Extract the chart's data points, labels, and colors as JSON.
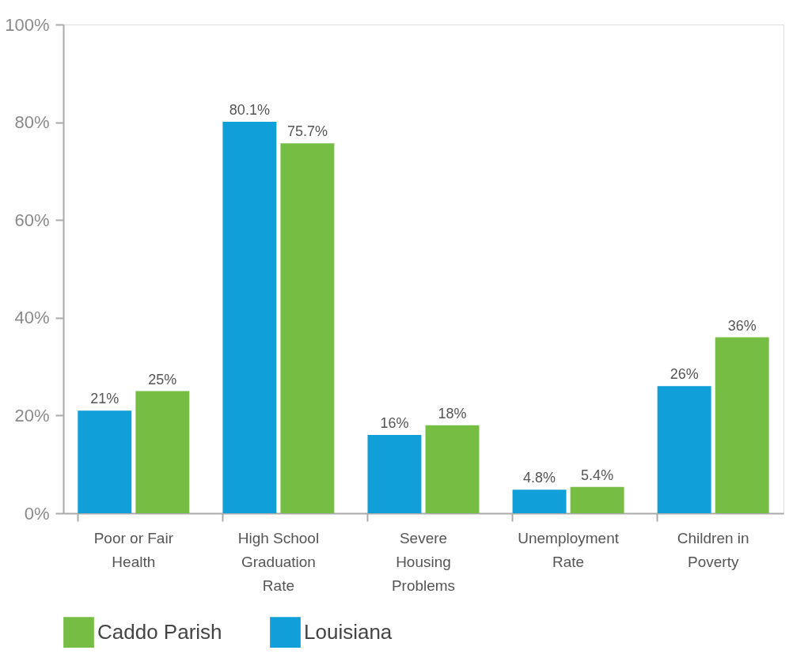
{
  "chart_data": {
    "type": "bar",
    "categories": [
      "Poor or Fair Health",
      "High School Graduation Rate",
      "Severe Housing Problems",
      "Unemployment Rate",
      "Children in Poverty"
    ],
    "series": [
      {
        "name": "Louisiana",
        "color": "#109fd9",
        "values": [
          21,
          80.1,
          16,
          4.8,
          26
        ],
        "value_labels": [
          "21%",
          "80.1%",
          "16%",
          "4.8%",
          "26%"
        ]
      },
      {
        "name": "Caddo Parish",
        "color": "#76bd43",
        "values": [
          25,
          75.7,
          18,
          5.4,
          36
        ],
        "value_labels": [
          "25%",
          "75.7%",
          "18%",
          "5.4%",
          "36%"
        ]
      }
    ],
    "ylim": [
      0,
      100
    ],
    "yticks": [
      {
        "value": 0,
        "label": "0%"
      },
      {
        "value": 20,
        "label": "20%"
      },
      {
        "value": 40,
        "label": "40%"
      },
      {
        "value": 60,
        "label": "60%"
      },
      {
        "value": 80,
        "label": "80%"
      },
      {
        "value": 100,
        "label": "100%"
      }
    ],
    "grid": false,
    "legend": "bottom"
  }
}
